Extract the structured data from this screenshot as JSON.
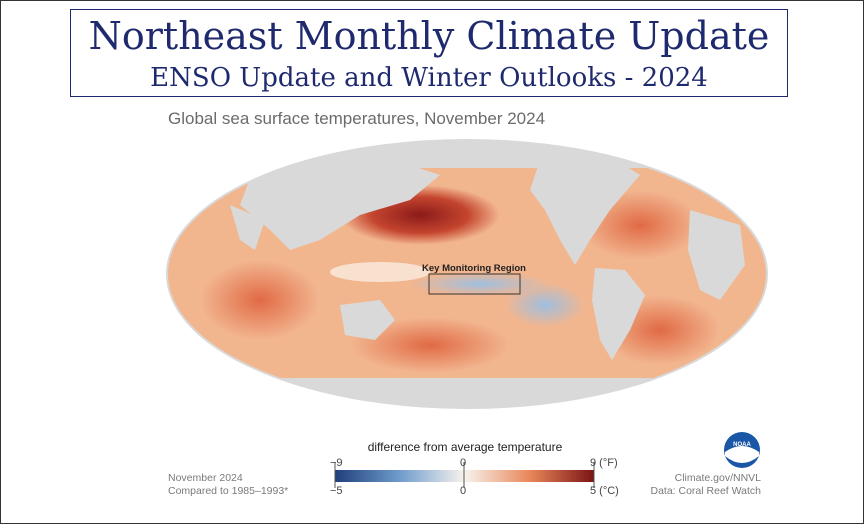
{
  "header": {
    "title": "Northeast Monthly Climate Update",
    "subtitle": "ENSO Update and Winter Outlooks - 2024"
  },
  "map": {
    "title": "Global sea surface temperatures, November 2024",
    "region_label": "Key Monitoring Region",
    "colors": {
      "land": "#d9d9d9",
      "warm_dark": "#8b1a1a",
      "warm": "#e8875a",
      "warm_light": "#f6c7a4",
      "neutral": "#f7f0ea",
      "cool": "#a9c6e3",
      "cool_dark": "#1f4e8c"
    }
  },
  "legend": {
    "title": "difference from average temperature",
    "f_min": "−9",
    "f_mid": "0",
    "f_max": "9 (°F)",
    "c_min": "−5",
    "c_mid": "0",
    "c_max": "5 (°C)"
  },
  "footer": {
    "left_line1": "November 2024",
    "left_line2": "Compared to 1985–1993*",
    "right_line1": "Climate.gov/NNVL",
    "right_line2": "Data: Coral Reef Watch"
  },
  "logo": {
    "icon": "noaa-logo",
    "text": "NOAA"
  }
}
